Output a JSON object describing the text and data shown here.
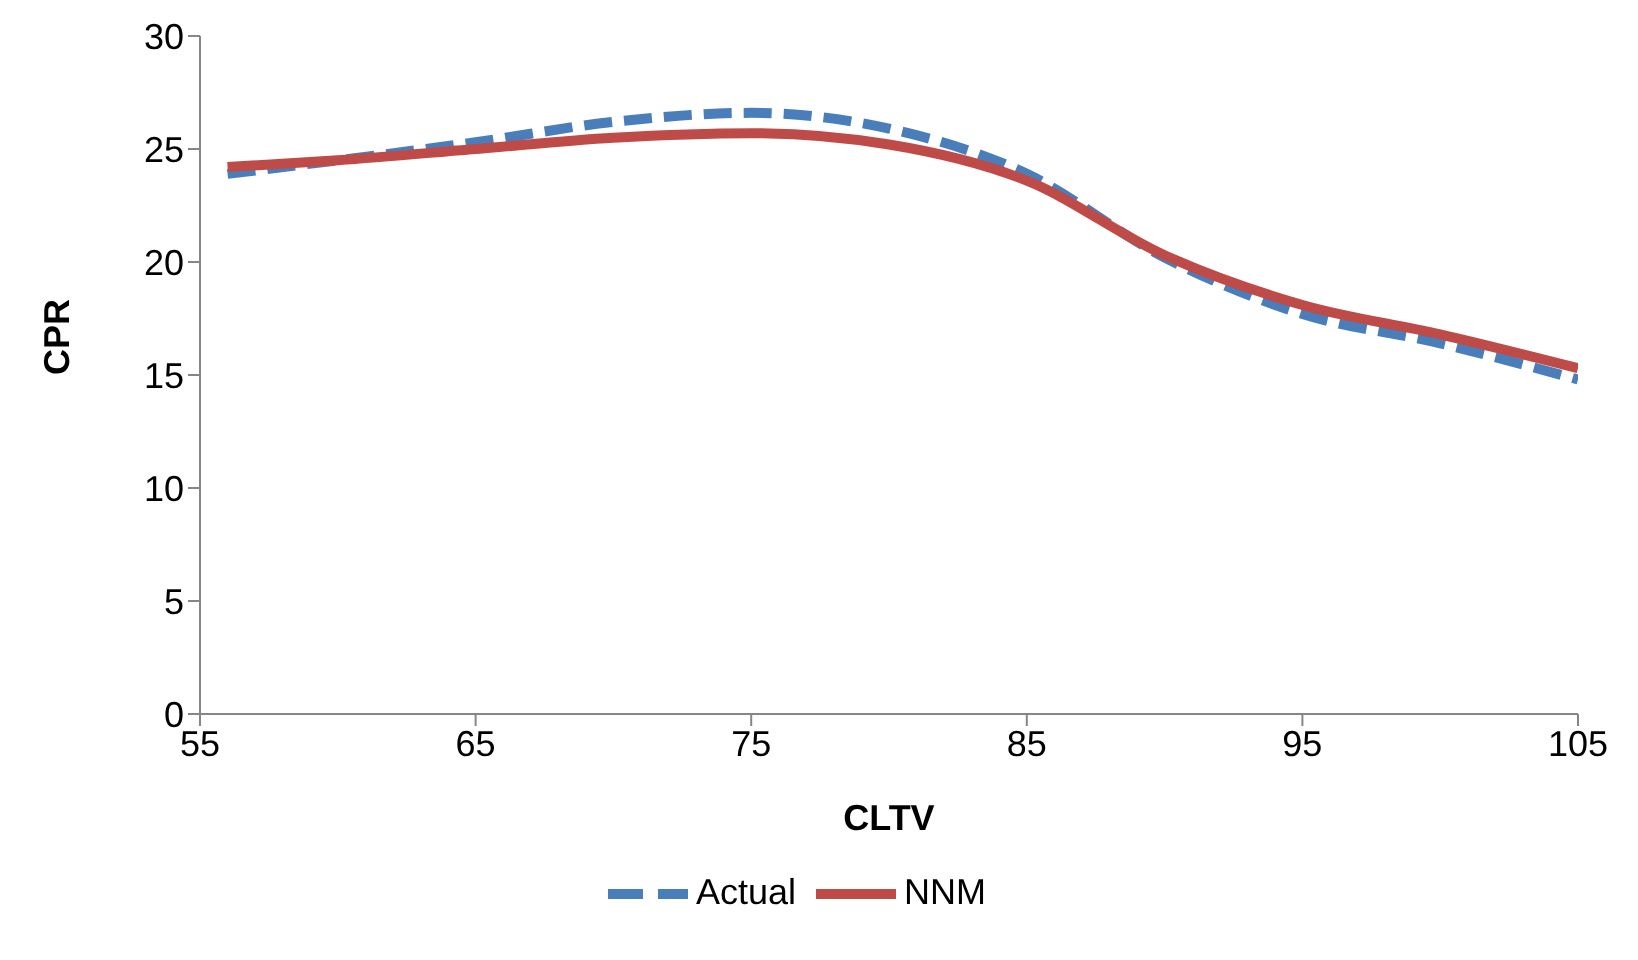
{
  "chart_data": {
    "type": "line",
    "xlabel": "CLTV",
    "ylabel": "CPR",
    "x": [
      56,
      60,
      65,
      70,
      75,
      80,
      85,
      90,
      95,
      100,
      105
    ],
    "series": [
      {
        "name": "Actual",
        "color": "#4a7ebb",
        "line_style": "dashed",
        "values": [
          23.9,
          24.5,
          25.3,
          26.2,
          26.6,
          25.9,
          23.9,
          20.2,
          17.7,
          16.4,
          14.8
        ]
      },
      {
        "name": "NNM",
        "color": "#be4b48",
        "line_style": "solid",
        "values": [
          24.2,
          24.5,
          25.0,
          25.5,
          25.7,
          25.2,
          23.6,
          20.3,
          18.1,
          16.8,
          15.3
        ]
      }
    ],
    "xlim": [
      55,
      105
    ],
    "xticks": [
      55,
      65,
      75,
      85,
      95,
      105
    ],
    "ylim": [
      0,
      30
    ],
    "yticks": [
      0,
      5,
      10,
      15,
      20,
      25,
      30
    ],
    "grid": false,
    "legend": "bottom",
    "marker": "none"
  }
}
